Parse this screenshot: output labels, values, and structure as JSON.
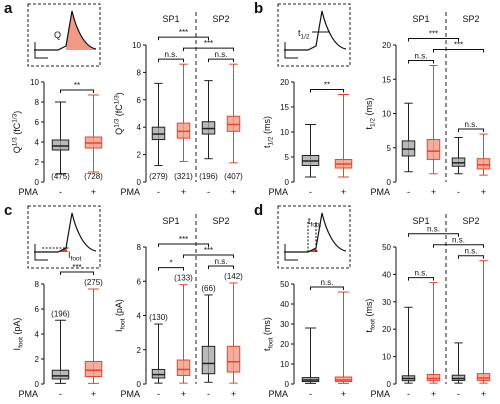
{
  "panel_letters": [
    "a",
    "b",
    "c",
    "d"
  ],
  "insets": [
    {
      "label": [
        {
          "text": "Q"
        }
      ]
    },
    {
      "label": [
        {
          "text": "t"
        },
        {
          "text": "1/2",
          "shift": "sub"
        }
      ]
    },
    {
      "label": [
        {
          "text": "I"
        },
        {
          "text": "foot",
          "shift": "sub"
        }
      ]
    },
    {
      "label": [
        {
          "text": "t"
        },
        {
          "text": "foot",
          "shift": "sub"
        }
      ]
    }
  ],
  "chart_data": [
    {
      "type": "box",
      "y_label": [
        {
          "text": "Q"
        },
        {
          "text": "1/3",
          "shift": "super"
        },
        {
          "text": " (fC"
        },
        {
          "text": "1/3",
          "shift": "super"
        },
        {
          "text": ")"
        }
      ],
      "x_label": "PMA",
      "categories": [
        "-",
        "+"
      ],
      "colors": [
        "#222222",
        "#e8452c"
      ],
      "fills": [
        "#a8a8a8",
        "#f29a84"
      ],
      "ylim": [
        0,
        10
      ],
      "yticks": [
        0,
        2,
        4,
        6,
        8,
        10
      ],
      "boxes": [
        {
          "min": 0.8,
          "q1": 3.2,
          "median": 3.6,
          "q3": 4.2,
          "max": 8
        },
        {
          "min": 1,
          "q1": 3.4,
          "median": 3.9,
          "q3": 4.5,
          "max": 8.7
        }
      ],
      "count_labels": [
        "(475)",
        "(728)"
      ],
      "count_position": "bottom",
      "comparisons": [
        {
          "from": 0,
          "to": 1,
          "label": "**"
        }
      ]
    },
    {
      "type": "box",
      "y_label": [
        {
          "text": "Q"
        },
        {
          "text": "1/3",
          "shift": "super"
        },
        {
          "text": " (fC"
        },
        {
          "text": "1/3",
          "shift": "super"
        },
        {
          "text": ")"
        }
      ],
      "x_label": "PMA",
      "groups": [
        "SP1",
        "SP2"
      ],
      "categories": [
        "-",
        "+",
        "-",
        "+"
      ],
      "colors": [
        "#222222",
        "#e8452c",
        "#222222",
        "#e8452c"
      ],
      "fills": [
        "#a8a8a8",
        "#f29a84",
        "#a8a8a8",
        "#f29a84"
      ],
      "ylim": [
        0,
        10
      ],
      "yticks": [
        0,
        2,
        4,
        6,
        8,
        10
      ],
      "boxes": [
        {
          "min": 1.2,
          "q1": 3.1,
          "median": 3.5,
          "q3": 4.0,
          "max": 7.2
        },
        {
          "min": 1.5,
          "q1": 3.2,
          "median": 3.7,
          "q3": 4.3,
          "max": 8.6
        },
        {
          "min": 1.7,
          "q1": 3.5,
          "median": 3.9,
          "q3": 4.4,
          "max": 7.4
        },
        {
          "min": 1.4,
          "q1": 3.7,
          "median": 4.2,
          "q3": 4.8,
          "max": 8.6
        }
      ],
      "count_labels": [
        "(279)",
        "(321)",
        "(196)",
        "(407)"
      ],
      "count_position": "bottom",
      "comparisons": [
        {
          "from": 0,
          "to": 1,
          "label": "n.s."
        },
        {
          "from": 2,
          "to": 3,
          "label": "n.s."
        },
        {
          "from": 1,
          "to": 3,
          "label": "***"
        },
        {
          "from": 0,
          "to": 2,
          "label": "***"
        }
      ]
    },
    {
      "type": "box",
      "y_label": [
        {
          "text": "t"
        },
        {
          "text": "1/2",
          "shift": "sub"
        },
        {
          "text": " (ms)"
        }
      ],
      "x_label": "PMA",
      "categories": [
        "-",
        "+"
      ],
      "colors": [
        "#222222",
        "#e8452c"
      ],
      "fills": [
        "#a8a8a8",
        "#f29a84"
      ],
      "ylim": [
        0,
        20
      ],
      "yticks": [
        0,
        5,
        10,
        15,
        20
      ],
      "boxes": [
        {
          "min": 1,
          "q1": 3.3,
          "median": 4.2,
          "q3": 5.3,
          "max": 11.5
        },
        {
          "min": 1,
          "q1": 2.8,
          "median": 3.6,
          "q3": 4.5,
          "max": 17.5
        }
      ],
      "comparisons": [
        {
          "from": 0,
          "to": 1,
          "label": "**"
        }
      ]
    },
    {
      "type": "box",
      "y_label": [
        {
          "text": "t"
        },
        {
          "text": "1/2",
          "shift": "sub"
        },
        {
          "text": " (ms)"
        }
      ],
      "x_label": "PMA",
      "groups": [
        "SP1",
        "SP2"
      ],
      "categories": [
        "-",
        "+",
        "-",
        "+"
      ],
      "colors": [
        "#222222",
        "#e8452c",
        "#222222",
        "#e8452c"
      ],
      "fills": [
        "#a8a8a8",
        "#f29a84",
        "#a8a8a8",
        "#f29a84"
      ],
      "ylim": [
        0,
        20
      ],
      "yticks": [
        0,
        5,
        10,
        15,
        20
      ],
      "boxes": [
        {
          "min": 1.5,
          "q1": 3.8,
          "median": 4.8,
          "q3": 6,
          "max": 11.5
        },
        {
          "min": 1.2,
          "q1": 3.3,
          "median": 4.5,
          "q3": 6.2,
          "max": 17
        },
        {
          "min": 1.2,
          "q1": 2.3,
          "median": 2.8,
          "q3": 3.5,
          "max": 6.5
        },
        {
          "min": 1,
          "q1": 1.9,
          "median": 2.5,
          "q3": 3.4,
          "max": 7
        }
      ],
      "comparisons": [
        {
          "from": 0,
          "to": 1,
          "label": "n.s."
        },
        {
          "from": 2,
          "to": 3,
          "label": "n.s."
        },
        {
          "from": 1,
          "to": 3,
          "label": "***"
        },
        {
          "from": 0,
          "to": 2,
          "label": "***"
        }
      ]
    },
    {
      "type": "box",
      "y_label": [
        {
          "text": "I"
        },
        {
          "text": "foot",
          "shift": "sub"
        },
        {
          "text": " (pA)"
        }
      ],
      "x_label": "PMA",
      "categories": [
        "-",
        "+"
      ],
      "colors": [
        "#222222",
        "#e8452c"
      ],
      "fills": [
        "#a8a8a8",
        "#f29a84"
      ],
      "ylim": [
        0,
        8
      ],
      "yticks": [
        0,
        2,
        4,
        6,
        8
      ],
      "boxes": [
        {
          "min": 0.05,
          "q1": 0.4,
          "median": 0.65,
          "q3": 1.1,
          "max": 5.1
        },
        {
          "min": 0.05,
          "q1": 0.6,
          "median": 1.1,
          "q3": 1.8,
          "max": 7.6
        }
      ],
      "count_labels": [
        "(196)",
        "(275)"
      ],
      "count_position": "top",
      "comparisons": [
        {
          "from": 0,
          "to": 1,
          "label": "***"
        }
      ]
    },
    {
      "type": "box",
      "y_label": [
        {
          "text": "I"
        },
        {
          "text": "foot",
          "shift": "sub"
        },
        {
          "text": " (pA)"
        }
      ],
      "x_label": "PMA",
      "groups": [
        "SP1",
        "SP2"
      ],
      "categories": [
        "-",
        "+",
        "-",
        "+"
      ],
      "colors": [
        "#222222",
        "#e8452c",
        "#222222",
        "#e8452c"
      ],
      "fills": [
        "#a8a8a8",
        "#f29a84",
        "#a8a8a8",
        "#f29a84"
      ],
      "ylim": [
        0,
        8
      ],
      "yticks": [
        0,
        2,
        4,
        6,
        8
      ],
      "boxes": [
        {
          "min": 0.05,
          "q1": 0.35,
          "median": 0.55,
          "q3": 0.85,
          "max": 3.5
        },
        {
          "min": 0.05,
          "q1": 0.5,
          "median": 0.85,
          "q3": 1.4,
          "max": 5.8
        },
        {
          "min": 0.1,
          "q1": 0.6,
          "median": 1.2,
          "q3": 2.2,
          "max": 5.2
        },
        {
          "min": 0.05,
          "q1": 0.7,
          "median": 1.3,
          "q3": 2.2,
          "max": 5.9
        }
      ],
      "count_labels": [
        "(130)",
        "(133)",
        "(66)",
        "(142)"
      ],
      "count_position": "top",
      "comparisons": [
        {
          "from": 0,
          "to": 1,
          "label": "*"
        },
        {
          "from": 2,
          "to": 3,
          "label": "n.s."
        },
        {
          "from": 1,
          "to": 3,
          "label": "***"
        },
        {
          "from": 0,
          "to": 2,
          "label": "***"
        }
      ]
    },
    {
      "type": "box",
      "y_label": [
        {
          "text": "t"
        },
        {
          "text": "foot",
          "shift": "sub"
        },
        {
          "text": " (ms)"
        }
      ],
      "x_label": "PMA",
      "categories": [
        "-",
        "+"
      ],
      "colors": [
        "#222222",
        "#e8452c"
      ],
      "fills": [
        "#a8a8a8",
        "#f29a84"
      ],
      "ylim": [
        0,
        50
      ],
      "yticks": [
        0,
        10,
        20,
        30,
        40,
        50
      ],
      "boxes": [
        {
          "min": 0.3,
          "q1": 1.2,
          "median": 2,
          "q3": 3.2,
          "max": 28
        },
        {
          "min": 0.3,
          "q1": 1.2,
          "median": 2,
          "q3": 3.5,
          "max": 46
        }
      ],
      "comparisons": [
        {
          "from": 0,
          "to": 1,
          "label": "n.s."
        }
      ]
    },
    {
      "type": "box",
      "y_label": [
        {
          "text": "t"
        },
        {
          "text": "foot",
          "shift": "sub"
        },
        {
          "text": " (ms)"
        }
      ],
      "x_label": "PMA",
      "groups": [
        "SP1",
        "SP2"
      ],
      "categories": [
        "-",
        "+",
        "-",
        "+"
      ],
      "colors": [
        "#222222",
        "#e8452c",
        "#222222",
        "#e8452c"
      ],
      "fills": [
        "#a8a8a8",
        "#f29a84",
        "#a8a8a8",
        "#f29a84"
      ],
      "ylim": [
        0,
        50
      ],
      "yticks": [
        0,
        10,
        20,
        30,
        40,
        50
      ],
      "boxes": [
        {
          "min": 0.3,
          "q1": 1.2,
          "median": 2,
          "q3": 3,
          "max": 28
        },
        {
          "min": 0.3,
          "q1": 1.2,
          "median": 2,
          "q3": 3.5,
          "max": 37
        },
        {
          "min": 0.3,
          "q1": 1.3,
          "median": 2,
          "q3": 3.2,
          "max": 15
        },
        {
          "min": 0.3,
          "q1": 1.3,
          "median": 2.2,
          "q3": 3.8,
          "max": 45
        }
      ],
      "comparisons": [
        {
          "from": 0,
          "to": 1,
          "label": "n.s."
        },
        {
          "from": 2,
          "to": 3,
          "label": "n.s."
        },
        {
          "from": 1,
          "to": 3,
          "label": "n.s."
        },
        {
          "from": 0,
          "to": 2,
          "label": "n.s."
        }
      ]
    }
  ]
}
